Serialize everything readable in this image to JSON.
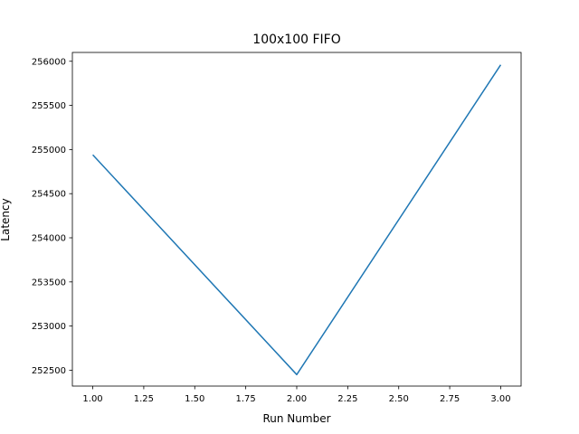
{
  "chart_data": {
    "type": "line",
    "title": "100x100 FIFO",
    "xlabel": "Run Number",
    "ylabel": "Latency",
    "xlim": [
      0.9,
      3.1
    ],
    "ylim": [
      252320,
      256100
    ],
    "xticks": [
      1.0,
      1.25,
      1.5,
      1.75,
      2.0,
      2.25,
      2.5,
      2.75,
      3.0
    ],
    "xtick_labels": [
      "1.00",
      "1.25",
      "1.50",
      "1.75",
      "2.00",
      "2.25",
      "2.50",
      "2.75",
      "3.00"
    ],
    "yticks": [
      252500,
      253000,
      253500,
      254000,
      254500,
      255000,
      255500,
      256000
    ],
    "ytick_labels": [
      "252500",
      "253000",
      "253500",
      "254000",
      "254500",
      "255000",
      "255500",
      "256000"
    ],
    "grid": false,
    "series": [
      {
        "x": [
          1,
          2,
          3
        ],
        "y": [
          254940,
          252450,
          255960
        ],
        "color": "#1f77b4"
      }
    ]
  }
}
